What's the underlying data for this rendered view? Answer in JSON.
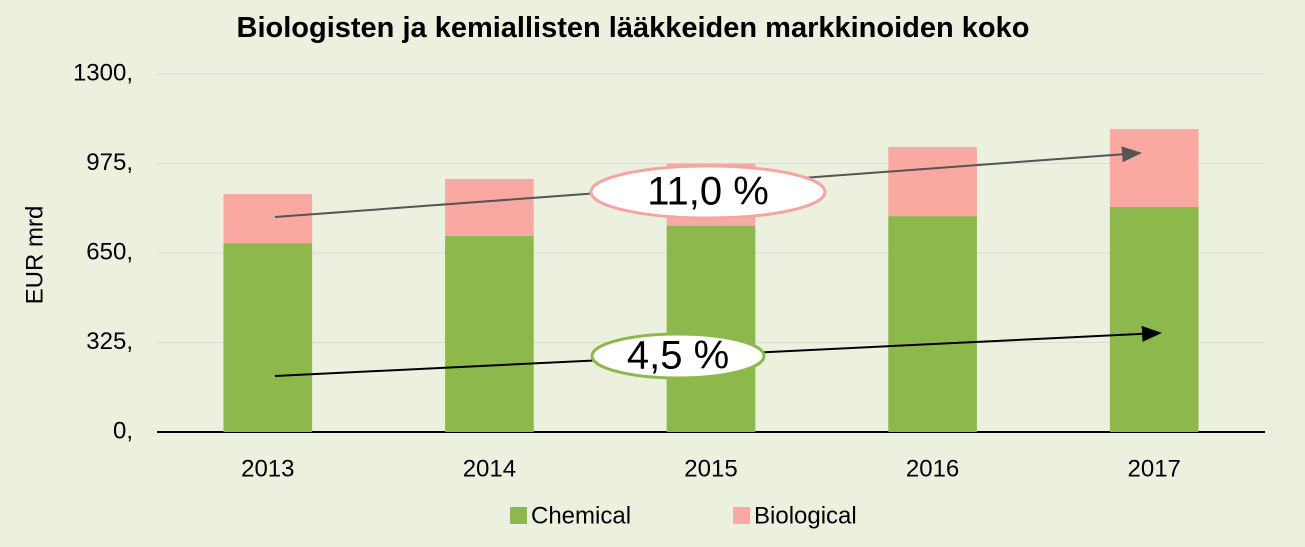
{
  "chart_data": {
    "type": "stacked_bar",
    "title": "Biologisten ja kemiallisten lääkkeiden markkinoiden koko",
    "y_label": "EUR mrd",
    "categories": [
      "2013",
      "2014",
      "2015",
      "2016",
      "2017"
    ],
    "series": [
      {
        "name": "Chemical",
        "color": "#8cb84c",
        "values": [
          686,
          712,
          748,
          784,
          817
        ]
      },
      {
        "name": "Biological",
        "color": "#f9a9a1",
        "values": [
          178,
          207,
          227,
          251,
          283
        ]
      }
    ],
    "ylim": [
      0,
      1300
    ],
    "yticks": [
      {
        "value": 0,
        "label": "0,"
      },
      {
        "value": 325,
        "label": "325,"
      },
      {
        "value": 650,
        "label": "650,"
      },
      {
        "value": 975,
        "label": "975,"
      },
      {
        "value": 1300,
        "label": "1300,"
      }
    ],
    "grid": true,
    "legend": "bottom",
    "annotations": [
      "11,0 %",
      "4,5 %"
    ]
  }
}
